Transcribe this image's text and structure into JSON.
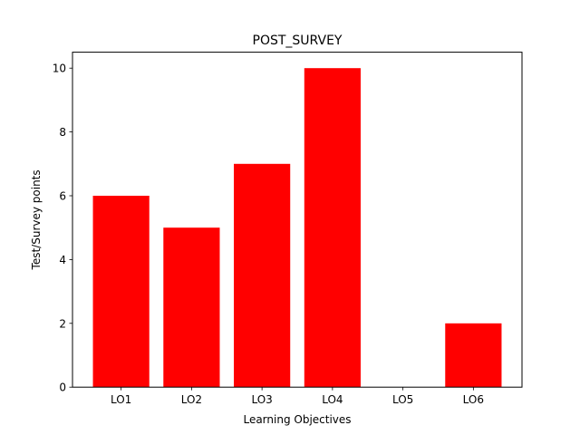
{
  "chart_data": {
    "type": "bar",
    "title": "POST_SURVEY",
    "xlabel": "Learning Objectives",
    "ylabel": "Test/Survey points",
    "categories": [
      "LO1",
      "LO2",
      "LO3",
      "LO4",
      "LO5",
      "LO6"
    ],
    "values": [
      6,
      5,
      7,
      10,
      0,
      2
    ],
    "ylim": [
      0,
      10.5
    ],
    "yticks": [
      0,
      2,
      4,
      6,
      8,
      10
    ],
    "grid": false,
    "bar_color": "#ff0000"
  }
}
